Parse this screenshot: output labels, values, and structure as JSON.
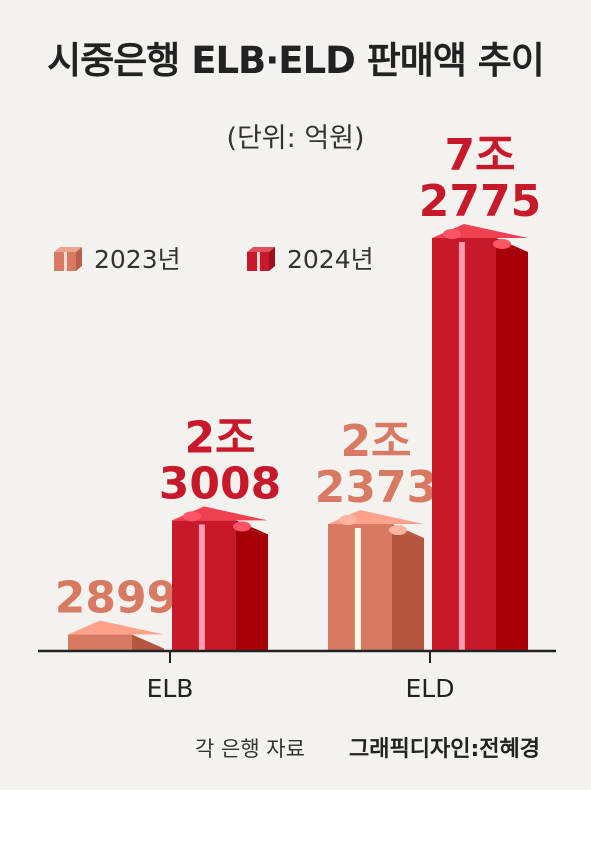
{
  "title": "시중은행 ELB·ELD 판매액 추이",
  "unit": "(단위: 억원)",
  "legend": [
    {
      "label": "2023년",
      "color": "#d77963"
    },
    {
      "label": "2024년",
      "color": "#c8192b"
    }
  ],
  "source": "각 은행 자료",
  "credit": "그래픽디자인:전혜경",
  "chart_data": {
    "type": "bar",
    "categories": [
      "ELB",
      "ELD"
    ],
    "series": [
      {
        "name": "2023년",
        "values": [
          2899,
          22373
        ],
        "labels": [
          "2899",
          "2조\n2373"
        ],
        "color": "#d77963"
      },
      {
        "name": "2024년",
        "values": [
          23008,
          72775
        ],
        "labels": [
          "2조\n3008",
          "7조\n2775"
        ],
        "color": "#c8192b"
      }
    ],
    "ylabel": "억원"
  }
}
